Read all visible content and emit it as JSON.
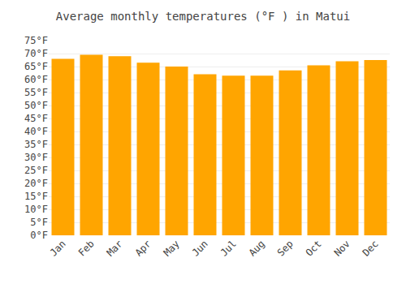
{
  "chart_data": {
    "type": "bar",
    "title": "Average monthly temperatures (°F ) in Matui",
    "categories": [
      "Jan",
      "Feb",
      "Mar",
      "Apr",
      "May",
      "Jun",
      "Jul",
      "Aug",
      "Sep",
      "Oct",
      "Nov",
      "Dec"
    ],
    "values": [
      68,
      69.5,
      69,
      66.5,
      65,
      62,
      61.5,
      61.5,
      63.5,
      65.5,
      67,
      67.5
    ],
    "color": "#FFA500",
    "ylim": [
      0,
      75
    ],
    "yticks": [
      {
        "value": 0,
        "label": "0°F"
      },
      {
        "value": 5,
        "label": "5°F"
      },
      {
        "value": 10,
        "label": "10°F"
      },
      {
        "value": 15,
        "label": "15°F"
      },
      {
        "value": 20,
        "label": "20°F"
      },
      {
        "value": 25,
        "label": "25°F"
      },
      {
        "value": 30,
        "label": "30°F"
      },
      {
        "value": 35,
        "label": "35°F"
      },
      {
        "value": 40,
        "label": "40°F"
      },
      {
        "value": 45,
        "label": "45°F"
      },
      {
        "value": 50,
        "label": "50°F"
      },
      {
        "value": 55,
        "label": "55°F"
      },
      {
        "value": 60,
        "label": "60°F"
      },
      {
        "value": 65,
        "label": "65°F"
      },
      {
        "value": 70,
        "label": "70°F"
      },
      {
        "value": 75,
        "label": "75°F"
      }
    ],
    "grid": true
  }
}
